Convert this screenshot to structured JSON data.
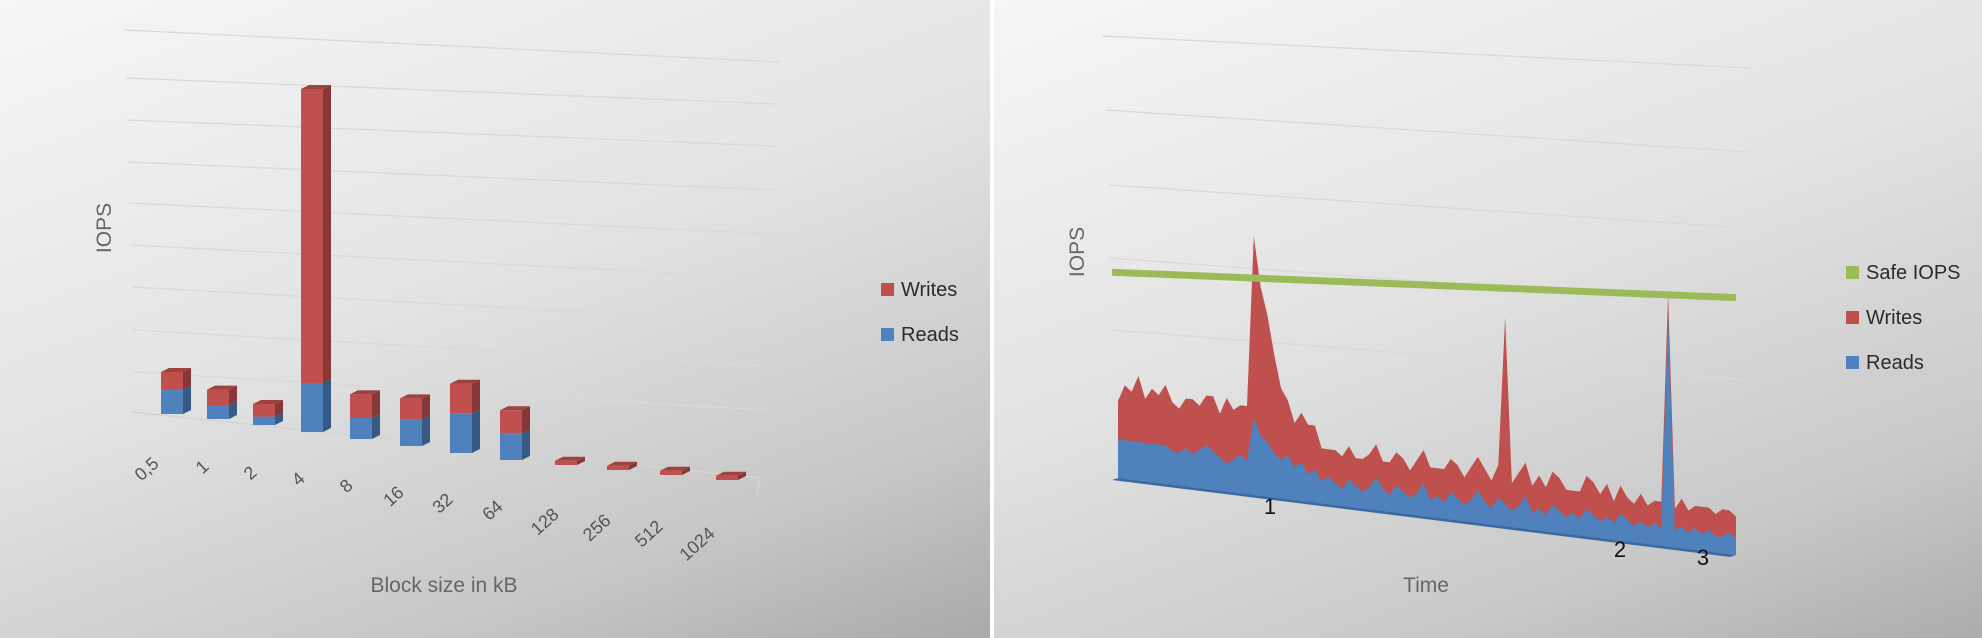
{
  "chart_data": [
    {
      "type": "bar",
      "stacked": true,
      "three_d": true,
      "ylabel": "IOPS",
      "xlabel": "Block size in kB",
      "categories": [
        "0,5",
        "1",
        "2",
        "4",
        "8",
        "16",
        "32",
        "64",
        "128",
        "256",
        "512",
        "1024"
      ],
      "series": [
        {
          "name": "Reads",
          "color": "#4f81bd",
          "values": [
            3.5,
            2.0,
            1.2,
            7.0,
            3.0,
            3.8,
            5.6,
            3.8,
            0,
            0,
            0,
            0
          ]
        },
        {
          "name": "Writes",
          "color": "#c0504d",
          "values": [
            2.5,
            2.2,
            1.8,
            42.0,
            3.4,
            3.0,
            4.3,
            3.3,
            0.6,
            0.6,
            0.6,
            0.6
          ]
        }
      ],
      "ylim": [
        0,
        50
      ],
      "grid": true,
      "legend": "right"
    },
    {
      "type": "area",
      "stacked": true,
      "three_d": true,
      "ylabel": "IOPS",
      "xlabel": "Time",
      "series": [
        {
          "name": "Reads",
          "color": "#4f81bd",
          "values": [
            7,
            7,
            7,
            7,
            7,
            7,
            7,
            7,
            6,
            6,
            7,
            6,
            7,
            8,
            7,
            6,
            5,
            6,
            7,
            6,
            14,
            11,
            10,
            8,
            7,
            8,
            6,
            7,
            5,
            6,
            4,
            5,
            4,
            3,
            5,
            4,
            3,
            4,
            6,
            4,
            3,
            5,
            4,
            3,
            4,
            6,
            3,
            4,
            3,
            5,
            4,
            3,
            4,
            6,
            4,
            3,
            5,
            4,
            3,
            4,
            6,
            3,
            4,
            3,
            5,
            4,
            3,
            4,
            3,
            5,
            4,
            3,
            4,
            3,
            5,
            4,
            3,
            4,
            3,
            4,
            3,
            42,
            3,
            4,
            3,
            4,
            3,
            4,
            3,
            3,
            4,
            3
          ]
        },
        {
          "name": "Writes",
          "color": "#c0504d",
          "values": [
            7,
            10,
            9,
            12,
            8,
            10,
            9,
            11,
            9,
            8,
            9,
            10,
            8,
            9,
            10,
            8,
            12,
            9,
            9,
            10,
            33,
            27,
            23,
            18,
            13,
            10,
            8,
            9,
            9,
            8,
            6,
            5,
            6,
            6,
            6,
            5,
            6,
            6,
            6,
            5,
            6,
            6,
            6,
            5,
            6,
            6,
            6,
            5,
            6,
            6,
            6,
            5,
            6,
            6,
            6,
            5,
            6,
            34,
            5,
            6,
            6,
            5,
            6,
            5,
            6,
            6,
            5,
            4,
            5,
            6,
            6,
            5,
            6,
            4,
            5,
            4,
            4,
            5,
            4,
            4,
            5,
            4,
            4,
            5,
            4,
            4,
            5,
            4,
            4,
            5,
            4,
            4
          ]
        },
        {
          "name": "Safe IOPS",
          "color": "#9bbb59",
          "values": [
            17,
            9
          ]
        }
      ],
      "annotations": [
        "1",
        "2",
        "3"
      ],
      "grid": true,
      "legend": "right"
    }
  ]
}
